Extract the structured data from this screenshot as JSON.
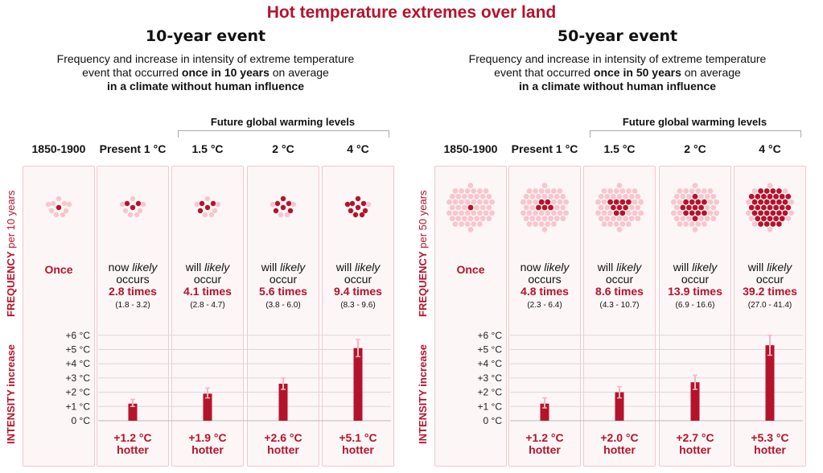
{
  "title": "Hot temperature extremes over land",
  "colors": {
    "accent": "#b5132b",
    "dot_light": "#f7c6cd",
    "dot_dark": "#b5132b",
    "box_bg": "#fdf6f7",
    "box_border": "#f2c7cc"
  },
  "y_tick_labels": [
    "0 °C",
    "+1 °C",
    "+2 °C",
    "+3 °C",
    "+4 °C",
    "+5 °C",
    "+6 °C"
  ],
  "side_labels": {
    "frequency_main": "FREQUENCY",
    "intensity": "INTENSITY increase"
  },
  "future_label": "Future global warming levels",
  "panels": [
    {
      "title": "10-year event",
      "subtitle_a": "Frequency and increase in intensity of extreme temperature",
      "subtitle_b": "event that occurred ",
      "subtitle_bold": "once in 10 years",
      "subtitle_c": " on average",
      "subtitle_d": "in a climate without human influence",
      "frequency_suffix": " per 10 years",
      "columns": [
        {
          "label": "1850-1900",
          "freq_kind": "once",
          "freq_once": "Once",
          "dots_total": 10,
          "dots_dark": 1
        },
        {
          "label": "Present 1 °C",
          "line1a": "now ",
          "line1b": "likely",
          "line2": "occurs",
          "times": "2.8 times",
          "range": "(1.8 - 3.2)",
          "dots_total": 10,
          "dots_dark": 3,
          "hotter": "+1.2 °C",
          "hotter_word": "hotter"
        },
        {
          "label": "1.5 °C",
          "line1a": "will ",
          "line1b": "likely",
          "line2": "occur",
          "times": "4.1 times",
          "range": "(2.8 - 4.7)",
          "dots_total": 10,
          "dots_dark": 4,
          "hotter": "+1.9 °C",
          "hotter_word": "hotter"
        },
        {
          "label": "2 °C",
          "line1a": "will ",
          "line1b": "likely",
          "line2": "occur",
          "times": "5.6 times",
          "range": "(3.8 - 6.0)",
          "dots_total": 10,
          "dots_dark": 6,
          "hotter": "+2.6 °C",
          "hotter_word": "hotter"
        },
        {
          "label": "4 °C",
          "line1a": "will ",
          "line1b": "likely",
          "line2": "occur",
          "times": "9.4 times",
          "range": "(8.3 - 9.6)",
          "dots_total": 10,
          "dots_dark": 9,
          "hotter": "+5.1 °C",
          "hotter_word": "hotter"
        }
      ]
    },
    {
      "title": "50-year event",
      "subtitle_a": "Frequency and increase in intensity of extreme temperature",
      "subtitle_b": "event that occurred ",
      "subtitle_bold": "once in 50 years",
      "subtitle_c": " on average",
      "subtitle_d": "in a climate without human influence",
      "frequency_suffix": " per 50 years",
      "columns": [
        {
          "label": "1850-1900",
          "freq_kind": "once",
          "freq_once": "Once",
          "dots_total": 50,
          "dots_dark": 1
        },
        {
          "label": "Present 1 °C",
          "line1a": "now ",
          "line1b": "likely",
          "line2": "occurs",
          "times": "4.8 times",
          "range": "(2.3 - 6.4)",
          "dots_total": 50,
          "dots_dark": 5,
          "hotter": "+1.2 °C",
          "hotter_word": "hotter"
        },
        {
          "label": "1.5 °C",
          "line1a": "will ",
          "line1b": "likely",
          "line2": "occur",
          "times": "8.6 times",
          "range": "(4.3 - 10.7)",
          "dots_total": 50,
          "dots_dark": 9,
          "hotter": "+2.0 °C",
          "hotter_word": "hotter"
        },
        {
          "label": "2 °C",
          "line1a": "will ",
          "line1b": "likely",
          "line2": "occur",
          "times": "13.9 times",
          "range": "(6.9 - 16.6)",
          "dots_total": 50,
          "dots_dark": 14,
          "hotter": "+2.7 °C",
          "hotter_word": "hotter"
        },
        {
          "label": "4 °C",
          "line1a": "will ",
          "line1b": "likely",
          "line2": "occur",
          "times": "39.2 times",
          "range": "(27.0 - 41.4)",
          "dots_total": 50,
          "dots_dark": 39,
          "hotter": "+5.3 °C",
          "hotter_word": "hotter"
        }
      ]
    }
  ],
  "chart_data": [
    {
      "type": "bar",
      "title": "10-year event",
      "ylabel": "INTENSITY increase",
      "ylim": [
        0,
        6
      ],
      "categories": [
        "1850-1900",
        "Present 1 °C",
        "1.5 °C",
        "2 °C",
        "4 °C"
      ],
      "values": [
        0,
        1.2,
        1.9,
        2.6,
        5.1
      ],
      "error_low": [
        0,
        1.0,
        1.6,
        2.2,
        4.5
      ],
      "error_high": [
        0,
        1.5,
        2.3,
        3.0,
        5.7
      ],
      "frequency_times": [
        1,
        2.8,
        4.1,
        5.6,
        9.4
      ],
      "grid": true
    },
    {
      "type": "bar",
      "title": "50-year event",
      "ylabel": "INTENSITY increase",
      "ylim": [
        0,
        6
      ],
      "categories": [
        "1850-1900",
        "Present 1 °C",
        "1.5 °C",
        "2 °C",
        "4 °C"
      ],
      "values": [
        0,
        1.2,
        2.0,
        2.7,
        5.3
      ],
      "error_low": [
        0,
        0.9,
        1.6,
        2.2,
        4.6
      ],
      "error_high": [
        0,
        1.6,
        2.4,
        3.2,
        6.0
      ],
      "frequency_times": [
        1,
        4.8,
        8.6,
        13.9,
        39.2
      ],
      "grid": true
    }
  ]
}
